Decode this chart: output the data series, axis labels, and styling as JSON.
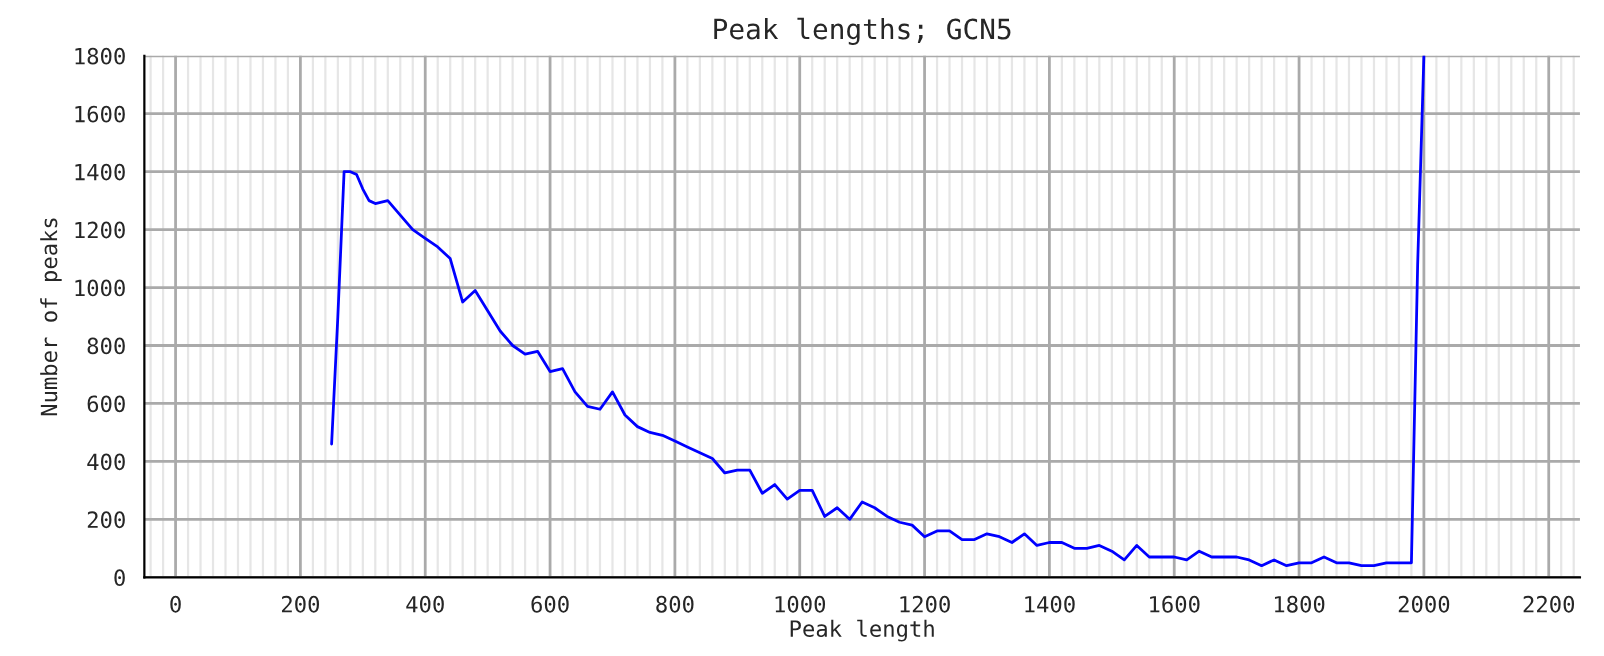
{
  "chart_data": {
    "type": "line",
    "title": "Peak lengths; GCN5",
    "xlabel": "Peak length",
    "ylabel": "Number of peaks",
    "x": [
      250,
      260,
      270,
      280,
      290,
      300,
      310,
      320,
      340,
      360,
      380,
      400,
      420,
      440,
      460,
      480,
      500,
      520,
      540,
      560,
      580,
      600,
      620,
      640,
      660,
      680,
      700,
      720,
      740,
      760,
      780,
      800,
      820,
      840,
      860,
      880,
      900,
      920,
      940,
      960,
      980,
      1000,
      1020,
      1040,
      1060,
      1080,
      1100,
      1120,
      1140,
      1160,
      1180,
      1200,
      1220,
      1240,
      1260,
      1280,
      1300,
      1320,
      1340,
      1360,
      1380,
      1400,
      1420,
      1440,
      1460,
      1480,
      1500,
      1520,
      1540,
      1560,
      1580,
      1600,
      1620,
      1640,
      1660,
      1680,
      1700,
      1720,
      1740,
      1760,
      1780,
      1800,
      1820,
      1840,
      1860,
      1880,
      1900,
      1920,
      1940,
      1960,
      1980,
      1990,
      2000
    ],
    "series": [
      {
        "color": "#0000ff",
        "values": [
          460,
          900,
          1400,
          1400,
          1390,
          1340,
          1300,
          1290,
          1300,
          1250,
          1200,
          1170,
          1140,
          1100,
          950,
          990,
          920,
          850,
          800,
          770,
          780,
          710,
          720,
          640,
          590,
          580,
          640,
          560,
          520,
          500,
          490,
          470,
          450,
          430,
          410,
          360,
          370,
          370,
          290,
          320,
          270,
          300,
          300,
          210,
          240,
          200,
          260,
          240,
          210,
          190,
          180,
          140,
          160,
          160,
          130,
          130,
          150,
          140,
          120,
          150,
          110,
          120,
          120,
          100,
          100,
          110,
          90,
          60,
          110,
          70,
          70,
          70,
          60,
          90,
          70,
          70,
          70,
          60,
          40,
          60,
          40,
          50,
          50,
          70,
          50,
          50,
          40,
          40,
          50,
          50,
          50,
          1080,
          1800
        ]
      }
    ],
    "xlim": [
      -50,
      2250
    ],
    "ylim": [
      0,
      1800
    ],
    "xticks": [
      0,
      200,
      400,
      600,
      800,
      1000,
      1200,
      1400,
      1600,
      1800,
      2000,
      2200
    ],
    "yticks": [
      0,
      200,
      400,
      600,
      800,
      1000,
      1200,
      1400,
      1600,
      1800
    ],
    "grid": true,
    "legend": false
  }
}
